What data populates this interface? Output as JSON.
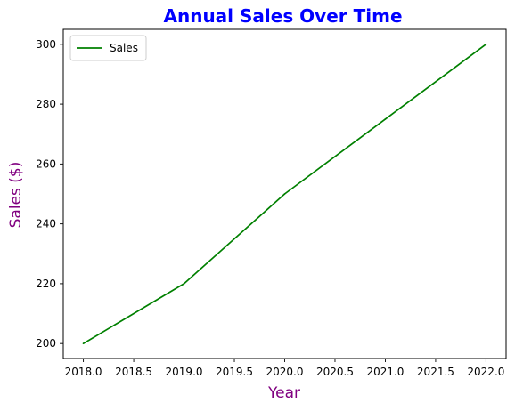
{
  "chart_data": {
    "type": "line",
    "title": "Annual Sales Over Time",
    "xlabel": "Year",
    "ylabel": "Sales ($)",
    "x": [
      2018,
      2019,
      2020,
      2021,
      2022
    ],
    "series": [
      {
        "name": "Sales",
        "values": [
          200,
          220,
          250,
          275,
          300
        ],
        "color": "#008000"
      }
    ],
    "xlim": [
      2017.8,
      2022.2
    ],
    "ylim": [
      195,
      305
    ],
    "xticks": [
      2018.0,
      2018.5,
      2019.0,
      2019.5,
      2020.0,
      2020.5,
      2021.0,
      2021.5,
      2022.0
    ],
    "xtick_labels": [
      "2018.0",
      "2018.5",
      "2019.0",
      "2019.5",
      "2020.0",
      "2020.5",
      "2021.0",
      "2021.5",
      "2022.0"
    ],
    "yticks": [
      200,
      220,
      240,
      260,
      280,
      300
    ],
    "ytick_labels": [
      "200",
      "220",
      "240",
      "260",
      "280",
      "300"
    ],
    "legend": {
      "placement": "top-left",
      "entries": [
        "Sales"
      ]
    },
    "grid": false,
    "title_color": "#0000ff",
    "label_color": "#800080"
  }
}
